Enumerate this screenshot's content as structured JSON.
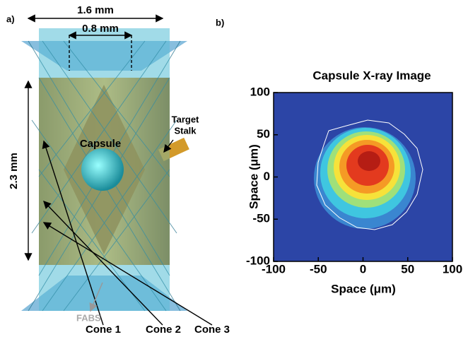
{
  "panel_a": {
    "label": "a)",
    "dim_outer": "1.6 mm",
    "dim_inner": "0.8 mm",
    "dim_height": "2.3 mm",
    "capsule": "Capsule",
    "stalk": [
      "Target",
      "Stalk"
    ],
    "fabs": "FABS",
    "cones": [
      "Cone 1",
      "Cone 2",
      "Cone 3"
    ]
  },
  "chart_data": {
    "type": "image",
    "label": "b)",
    "title": "Capsule X-ray Image",
    "x_label": "Space (μm)",
    "y_label": "Space (μm)",
    "xlim": [
      -100,
      100
    ],
    "ylim": [
      -100,
      100
    ],
    "xticks": [
      -100,
      -50,
      0,
      50,
      100
    ],
    "yticks": [
      -100,
      -50,
      0,
      50,
      100
    ]
  }
}
